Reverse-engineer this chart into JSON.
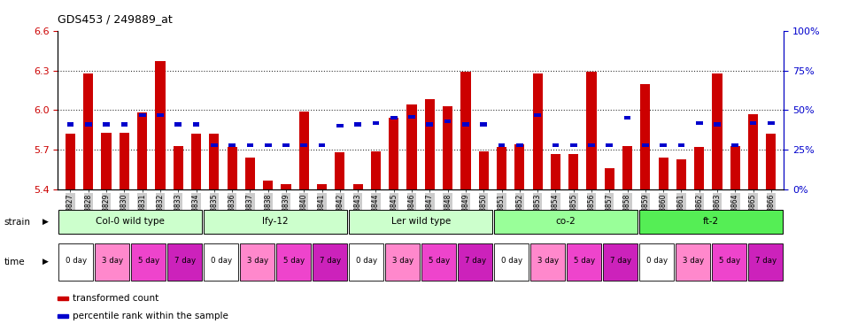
{
  "title": "GDS453 / 249889_at",
  "ylim_left": [
    5.4,
    6.6
  ],
  "ylim_right": [
    0,
    100
  ],
  "yticks_left": [
    5.4,
    5.7,
    6.0,
    6.3,
    6.6
  ],
  "yticks_right": [
    0,
    25,
    50,
    75,
    100
  ],
  "samples": [
    "GSM8827",
    "GSM8828",
    "GSM8829",
    "GSM8830",
    "GSM8831",
    "GSM8832",
    "GSM8833",
    "GSM8834",
    "GSM8835",
    "GSM8836",
    "GSM8837",
    "GSM8838",
    "GSM8839",
    "GSM8840",
    "GSM8841",
    "GSM8842",
    "GSM8843",
    "GSM8844",
    "GSM8845",
    "GSM8846",
    "GSM8847",
    "GSM8848",
    "GSM8849",
    "GSM8850",
    "GSM8851",
    "GSM8852",
    "GSM8853",
    "GSM8854",
    "GSM8855",
    "GSM8856",
    "GSM8857",
    "GSM8858",
    "GSM8859",
    "GSM8860",
    "GSM8861",
    "GSM8862",
    "GSM8863",
    "GSM8864",
    "GSM8865",
    "GSM8866"
  ],
  "bar_values": [
    5.82,
    6.28,
    5.83,
    5.83,
    5.98,
    6.37,
    5.73,
    5.82,
    5.82,
    5.72,
    5.64,
    5.47,
    5.44,
    5.99,
    5.44,
    5.68,
    5.44,
    5.69,
    5.94,
    6.04,
    6.08,
    6.03,
    6.29,
    5.69,
    5.72,
    5.74,
    6.28,
    5.67,
    5.67,
    6.29,
    5.56,
    5.73,
    6.2,
    5.64,
    5.63,
    5.72,
    6.28,
    5.73,
    5.97,
    5.82
  ],
  "percentile_values": [
    41,
    41,
    41,
    41,
    47,
    47,
    41,
    41,
    28,
    28,
    28,
    28,
    28,
    28,
    28,
    40,
    41,
    42,
    45,
    46,
    41,
    43,
    41,
    41,
    28,
    28,
    47,
    28,
    28,
    28,
    28,
    45,
    28,
    28,
    28,
    42,
    41,
    28,
    42,
    42
  ],
  "bar_color": "#cc0000",
  "percentile_color": "#0000cc",
  "bar_bottom": 5.4,
  "grid_yticks": [
    5.7,
    6.0,
    6.3
  ],
  "strains": [
    {
      "label": "Col-0 wild type",
      "start": 0,
      "end": 8,
      "color": "#ccffcc"
    },
    {
      "label": "lfy-12",
      "start": 8,
      "end": 16,
      "color": "#ccffcc"
    },
    {
      "label": "Ler wild type",
      "start": 16,
      "end": 24,
      "color": "#ccffcc"
    },
    {
      "label": "co-2",
      "start": 24,
      "end": 32,
      "color": "#99ff99"
    },
    {
      "label": "ft-2",
      "start": 32,
      "end": 40,
      "color": "#55ee55"
    }
  ],
  "time_labels": [
    "0 day",
    "3 day",
    "5 day",
    "7 day"
  ],
  "time_colors": [
    "#ffffff",
    "#ff88cc",
    "#ee44cc",
    "#cc22bb"
  ],
  "axis_color_left": "#cc0000",
  "axis_color_right": "#0000cc",
  "grid_color": "#333333",
  "tick_label_bg": "#cccccc"
}
